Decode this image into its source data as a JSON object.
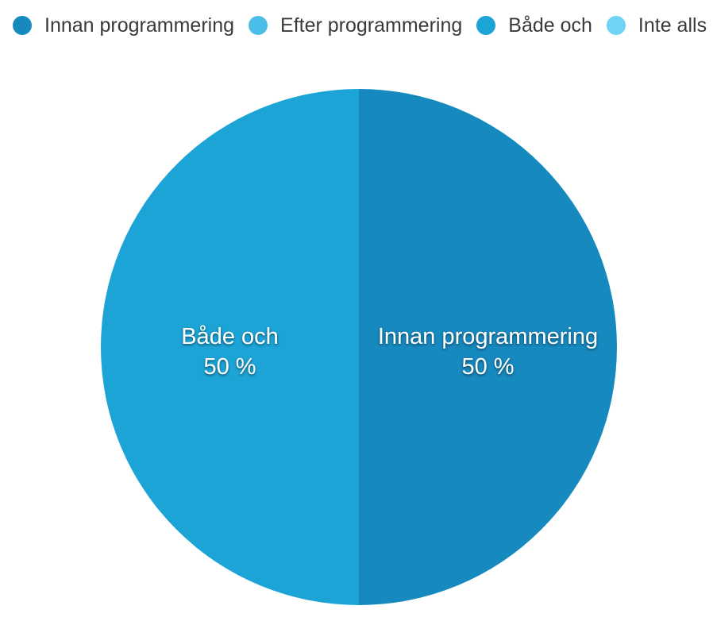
{
  "chart_data": {
    "type": "pie",
    "legend_position": "top",
    "categories": [
      "Innan programmering",
      "Efter programmering",
      "Både och",
      "Inte alls"
    ],
    "values": [
      50,
      0,
      50,
      0
    ],
    "labels": [
      "50 %",
      "",
      "50 %",
      ""
    ],
    "colors": [
      "#1689bf",
      "#4cbde8",
      "#1ca4d6",
      "#6dd4f7"
    ],
    "start": "top",
    "direction": "clockwise"
  }
}
